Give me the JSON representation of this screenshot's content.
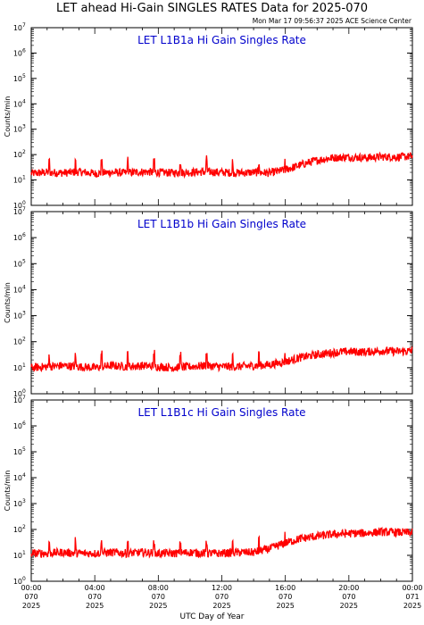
{
  "header": {
    "title": "LET ahead Hi-Gain SINGLES RATES Data for 2025-070",
    "timestamp": "Mon Mar 17 09:56:37 2025 ACE Science Center"
  },
  "colors": {
    "line": "#ff0000",
    "panel_title": "#0000cc",
    "axes": "#000000"
  },
  "chart_data": [
    {
      "type": "line",
      "title": "LET L1B1a Hi Gain Singles Rate",
      "ylabel": "Counts/min",
      "yscale": "log",
      "ylim": [
        1,
        10000000
      ],
      "y_tick_labels": [
        "10^0",
        "10^1",
        "10^2",
        "10^3",
        "10^4",
        "10^5",
        "10^6",
        "10^7"
      ],
      "series": [
        {
          "x_hours": [
            0,
            1,
            2,
            3,
            4,
            5,
            6,
            7,
            8,
            9,
            10,
            11,
            12,
            13,
            14,
            15,
            16,
            17,
            18,
            19,
            20,
            21,
            22,
            23,
            24
          ],
          "values": [
            18,
            20,
            19,
            21,
            18,
            20,
            19,
            21,
            20,
            19,
            20,
            21,
            20,
            19,
            20,
            19,
            25,
            40,
            60,
            75,
            80,
            75,
            82,
            80,
            85
          ]
        }
      ]
    },
    {
      "type": "line",
      "title": "LET L1B1b Hi Gain Singles Rate",
      "ylabel": "Counts/min",
      "yscale": "log",
      "ylim": [
        1,
        10000000
      ],
      "y_tick_labels": [
        "10^0",
        "10^1",
        "10^2",
        "10^3",
        "10^4",
        "10^5",
        "10^6",
        "10^7"
      ],
      "series": [
        {
          "x_hours": [
            0,
            1,
            2,
            3,
            4,
            5,
            6,
            7,
            8,
            9,
            10,
            11,
            12,
            13,
            14,
            15,
            16,
            17,
            18,
            19,
            20,
            21,
            22,
            23,
            24
          ],
          "values": [
            10,
            11,
            12,
            11,
            10,
            12,
            11,
            12,
            11,
            10,
            11,
            12,
            11,
            11,
            12,
            13,
            17,
            25,
            32,
            38,
            42,
            40,
            45,
            42,
            44
          ]
        }
      ]
    },
    {
      "type": "line",
      "title": "LET L1B1c Hi Gain Singles Rate",
      "ylabel": "Counts/min",
      "yscale": "log",
      "ylim": [
        1,
        10000000
      ],
      "y_tick_labels": [
        "10^0",
        "10^1",
        "10^2",
        "10^3",
        "10^4",
        "10^5",
        "10^6",
        "10^7"
      ],
      "series": [
        {
          "x_hours": [
            0,
            1,
            2,
            3,
            4,
            5,
            6,
            7,
            8,
            9,
            10,
            11,
            12,
            13,
            14,
            15,
            16,
            17,
            18,
            19,
            20,
            21,
            22,
            23,
            24
          ],
          "values": [
            12,
            12,
            13,
            12,
            12,
            13,
            12,
            13,
            12,
            12,
            13,
            12,
            12,
            13,
            13,
            18,
            30,
            45,
            55,
            65,
            70,
            72,
            80,
            78,
            75
          ]
        }
      ]
    }
  ],
  "x_axis": {
    "label": "UTC Day of Year",
    "ticks": [
      {
        "hour": 0,
        "lines": [
          "00:00",
          "070",
          "2025"
        ]
      },
      {
        "hour": 4,
        "lines": [
          "04:00",
          "070",
          "2025"
        ]
      },
      {
        "hour": 8,
        "lines": [
          "08:00",
          "070",
          "2025"
        ]
      },
      {
        "hour": 12,
        "lines": [
          "12:00",
          "070",
          "2025"
        ]
      },
      {
        "hour": 16,
        "lines": [
          "16:00",
          "070",
          "2025"
        ]
      },
      {
        "hour": 20,
        "lines": [
          "20:00",
          "070",
          "2025"
        ]
      },
      {
        "hour": 24,
        "lines": [
          "00:00",
          "071",
          "2025"
        ]
      }
    ],
    "range_hours": [
      0,
      24
    ]
  }
}
